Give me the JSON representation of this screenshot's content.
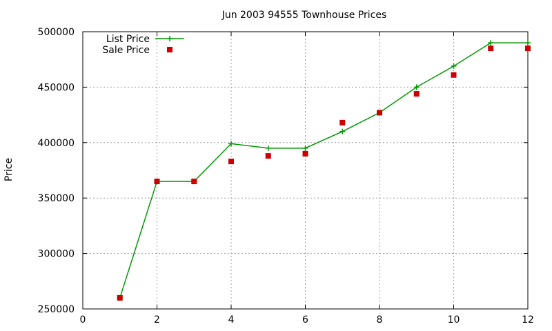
{
  "chart_data": {
    "type": "line",
    "title": "Jun 2003 94555 Townhouse Prices",
    "xlabel": "",
    "ylabel": "Price",
    "xlim": [
      0,
      12
    ],
    "ylim": [
      250000,
      500000
    ],
    "xticks": [
      0,
      2,
      4,
      6,
      8,
      10,
      12
    ],
    "yticks": [
      250000,
      300000,
      350000,
      400000,
      450000,
      500000
    ],
    "grid": true,
    "legend_position": "top-left",
    "series": [
      {
        "name": "List Price",
        "style": "line+cross",
        "color": "#009900",
        "x": [
          1,
          2,
          3,
          4,
          5,
          6,
          7,
          8,
          9,
          10,
          11,
          12
        ],
        "y": [
          260000,
          365000,
          365000,
          399000,
          395000,
          395000,
          410000,
          427000,
          450000,
          469000,
          490000,
          490000
        ]
      },
      {
        "name": "Sale Price",
        "style": "square",
        "color": "#cc0000",
        "x": [
          1,
          2,
          3,
          4,
          5,
          6,
          7,
          8,
          9,
          10,
          11,
          12
        ],
        "y": [
          260000,
          365000,
          365000,
          383000,
          388000,
          390000,
          418000,
          427000,
          444000,
          461000,
          485000,
          485000
        ]
      }
    ]
  }
}
